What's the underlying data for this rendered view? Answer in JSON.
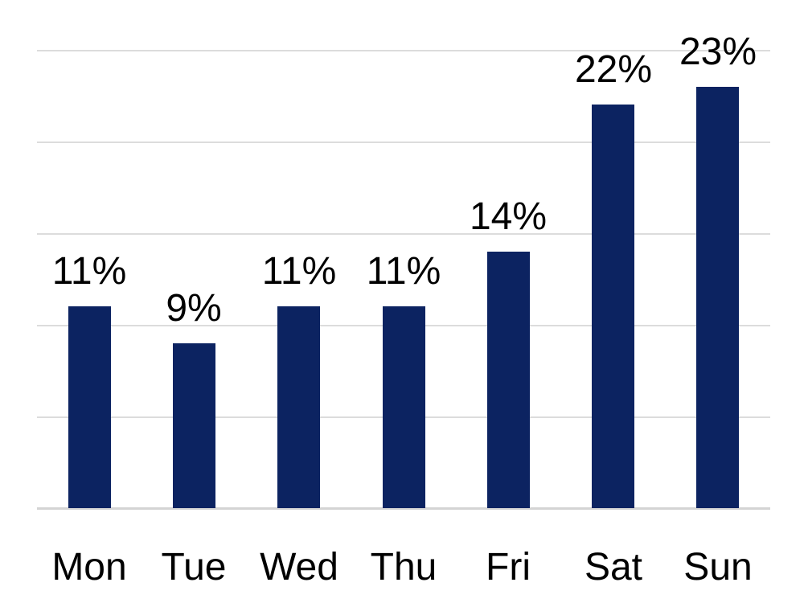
{
  "chart_data": {
    "type": "bar",
    "title": "",
    "xlabel": "",
    "ylabel": "",
    "categories": [
      "Mon",
      "Tue",
      "Wed",
      "Thu",
      "Fri",
      "Sat",
      "Sun"
    ],
    "values": [
      11,
      9,
      11,
      11,
      14,
      22,
      23
    ],
    "data_labels": [
      "11%",
      "9%",
      "11%",
      "11%",
      "14%",
      "22%",
      "23%"
    ],
    "unit": "%",
    "ylim": [
      0,
      25
    ],
    "gridline_interval": 5,
    "grid": true,
    "legend": false,
    "y_axis_tick_labels_visible": false,
    "data_label_position": "outside-end",
    "colors": {
      "bar": "#0c2361",
      "gridline": "#dcdcdc",
      "axis_line": "#d4d4d4",
      "label": "#000000",
      "background": "#ffffff"
    }
  }
}
